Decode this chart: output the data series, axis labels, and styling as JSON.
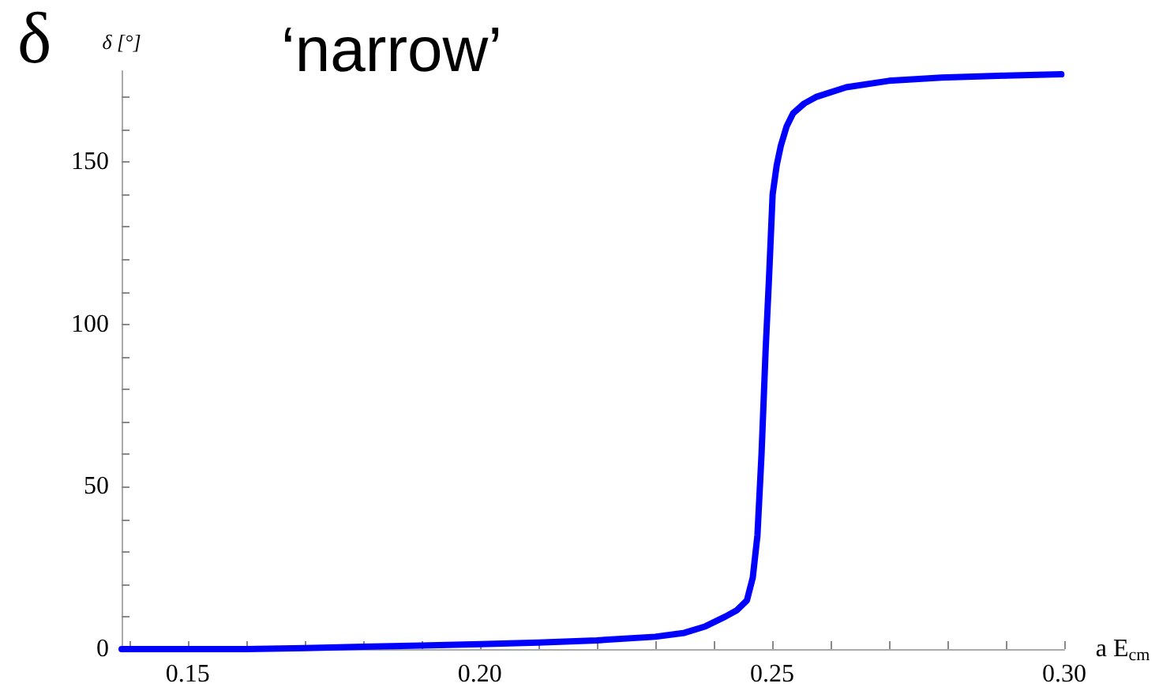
{
  "chart_data": {
    "type": "line",
    "title": "δ",
    "annotations": [
      "‘narrow’"
    ],
    "xlabel": "a E$_{cm}$",
    "ylabel": "δ [°]",
    "x": [
      0.1387,
      0.16,
      0.17,
      0.18,
      0.19,
      0.2,
      0.21,
      0.22,
      0.23,
      0.235,
      0.2386,
      0.242,
      0.244,
      0.2457,
      0.2467,
      0.2475,
      0.2482,
      0.2489,
      0.2495,
      0.2501,
      0.2508,
      0.2515,
      0.2525,
      0.2536,
      0.2555,
      0.2575,
      0.2627,
      0.27,
      0.279,
      0.29,
      0.2995
    ],
    "series": [
      {
        "color": "#0000ff",
        "values": [
          0,
          0,
          0.3,
          0.7,
          1.1,
          1.5,
          2,
          2.7,
          3.8,
          5,
          7,
          10,
          12,
          15,
          22,
          35,
          60,
          92,
          115,
          140,
          149,
          155,
          161,
          165,
          168,
          170,
          173,
          175,
          176,
          176.6,
          177
        ]
      }
    ],
    "xlim": [
      0.1387,
      0.3
    ],
    "xticks": [
      {
        "value": 0.14,
        "label": null
      },
      {
        "value": 0.15,
        "label": "0.15"
      },
      {
        "value": 0.16,
        "label": null
      },
      {
        "value": 0.17,
        "label": null
      },
      {
        "value": 0.18,
        "label": null
      },
      {
        "value": 0.19,
        "label": null
      },
      {
        "value": 0.2,
        "label": "0.20"
      },
      {
        "value": 0.21,
        "label": null
      },
      {
        "value": 0.22,
        "label": null
      },
      {
        "value": 0.23,
        "label": null
      },
      {
        "value": 0.24,
        "label": null
      },
      {
        "value": 0.25,
        "label": "0.25"
      },
      {
        "value": 0.26,
        "label": null
      },
      {
        "value": 0.27,
        "label": null
      },
      {
        "value": 0.28,
        "label": null
      },
      {
        "value": 0.29,
        "label": null
      },
      {
        "value": 0.3,
        "label": "0.30"
      }
    ],
    "ylim": [
      0,
      178
    ],
    "yticks": [
      0,
      {
        "value": 10,
        "label": null
      },
      {
        "value": 20,
        "label": null
      },
      {
        "value": 30,
        "label": null
      },
      {
        "value": 40,
        "label": null
      },
      50,
      {
        "value": 60,
        "label": null
      },
      {
        "value": 70,
        "label": null
      },
      {
        "value": 80,
        "label": null
      },
      {
        "value": 90,
        "label": null
      },
      100,
      {
        "value": 110,
        "label": null
      },
      {
        "value": 120,
        "label": null
      },
      {
        "value": 130,
        "label": null
      },
      {
        "value": 140,
        "label": null
      },
      150,
      {
        "value": 160,
        "label": null
      },
      {
        "value": 170,
        "label": null
      }
    ],
    "marker": "none",
    "line_style": "solid"
  }
}
